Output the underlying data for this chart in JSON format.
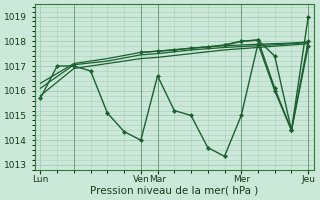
{
  "xlabel": "Pression niveau de la mer( hPa )",
  "ylim": [
    1012.8,
    1019.5
  ],
  "bg_color": "#cce8d8",
  "grid_color": "#aacfbe",
  "line_color": "#1a6030",
  "xtick_labels": [
    "Lun",
    "Ven",
    "Mar",
    "Mer",
    "Jeu"
  ],
  "xtick_pos": [
    0,
    36,
    42,
    72,
    96
  ],
  "xlim": [
    -2,
    98
  ],
  "lines": [
    {
      "x": [
        0,
        6,
        12,
        18,
        24,
        30,
        36,
        42,
        48,
        54,
        60,
        66,
        72,
        78,
        84,
        90,
        96
      ],
      "y": [
        1015.7,
        1017.0,
        1017.0,
        1016.8,
        1015.1,
        1014.35,
        1014.0,
        1016.6,
        1015.2,
        1015.0,
        1013.7,
        1013.35,
        1015.0,
        1017.9,
        1016.0,
        1014.4,
        1017.8
      ],
      "marker": "D",
      "markersize": 2.0,
      "linewidth": 1.0
    },
    {
      "x": [
        0,
        12,
        24,
        36,
        42,
        54,
        66,
        78,
        90,
        96
      ],
      "y": [
        1015.8,
        1016.9,
        1017.1,
        1017.3,
        1017.35,
        1017.5,
        1017.65,
        1017.75,
        1017.85,
        1017.9
      ],
      "marker": null,
      "markersize": 0,
      "linewidth": 0.9
    },
    {
      "x": [
        0,
        12,
        24,
        36,
        42,
        54,
        66,
        78,
        90,
        96
      ],
      "y": [
        1016.1,
        1017.05,
        1017.2,
        1017.45,
        1017.5,
        1017.65,
        1017.75,
        1017.82,
        1017.9,
        1017.95
      ],
      "marker": null,
      "markersize": 0,
      "linewidth": 0.9
    },
    {
      "x": [
        0,
        12,
        24,
        36,
        42,
        54,
        66,
        78,
        90,
        96
      ],
      "y": [
        1016.3,
        1017.1,
        1017.3,
        1017.55,
        1017.6,
        1017.72,
        1017.82,
        1017.88,
        1017.93,
        1017.97
      ],
      "marker": null,
      "markersize": 0,
      "linewidth": 0.9
    },
    {
      "x": [
        36,
        42,
        48,
        54,
        60,
        66,
        72,
        78,
        84,
        90,
        96
      ],
      "y": [
        1017.55,
        1017.6,
        1017.65,
        1017.72,
        1017.78,
        1017.85,
        1018.0,
        1018.05,
        1017.4,
        1014.4,
        1019.0
      ],
      "marker": "D",
      "markersize": 2.0,
      "linewidth": 1.0
    },
    {
      "x": [
        66,
        72,
        78,
        84,
        90,
        96
      ],
      "y": [
        1017.85,
        1018.0,
        1018.05,
        1016.1,
        1014.4,
        1018.0
      ],
      "marker": "D",
      "markersize": 2.0,
      "linewidth": 1.0
    }
  ],
  "vlines_x": [
    12,
    36,
    42,
    72,
    96
  ],
  "vlines_color": "#1a6030",
  "vlines_alpha": 0.45
}
